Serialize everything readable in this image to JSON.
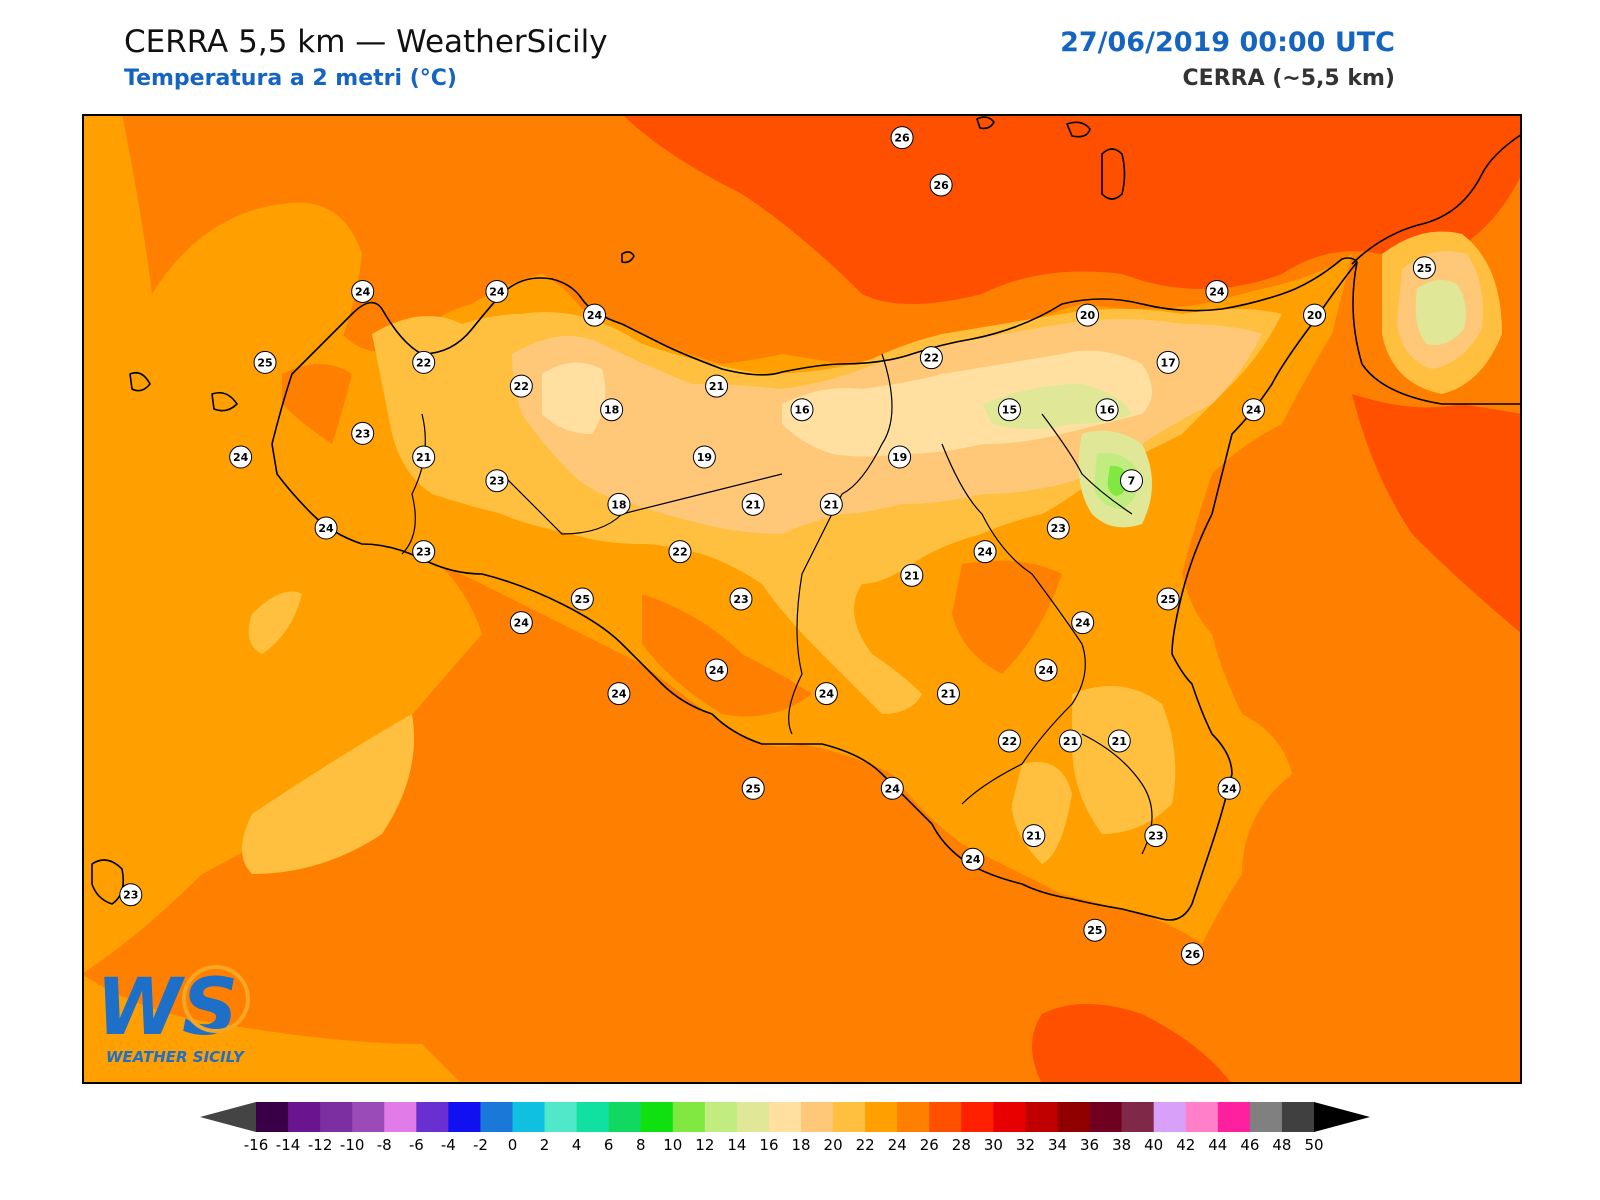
{
  "header": {
    "title": "CERRA 5,5 km — WeatherSicily",
    "subtitle": "Temperatura a 2 metri (°C)",
    "datetime": "27/06/2019 00:00 UTC",
    "model": "CERRA (~5,5 km)"
  },
  "logo": {
    "text": "WEATHER SICILY",
    "letters": "WS"
  },
  "colorbar": {
    "ticks": [
      -16,
      -14,
      -12,
      -10,
      -8,
      -6,
      -4,
      -2,
      0,
      2,
      4,
      6,
      8,
      10,
      12,
      14,
      16,
      18,
      20,
      22,
      24,
      26,
      28,
      30,
      32,
      34,
      36,
      38,
      40,
      42,
      44,
      46,
      48,
      50
    ],
    "colors": [
      "#3a0047",
      "#6a1490",
      "#7b2fa0",
      "#9b4bb8",
      "#e07be8",
      "#6a2fd0",
      "#1010f0",
      "#1a78d8",
      "#10c0e0",
      "#50e8c8",
      "#10e0a0",
      "#10d860",
      "#10e010",
      "#80e840",
      "#c0ec80",
      "#e0e898",
      "#ffe0a0",
      "#ffc878",
      "#ffc040",
      "#ffa000",
      "#ff8000",
      "#ff5000",
      "#ff2000",
      "#e80000",
      "#c00000",
      "#900000",
      "#700020",
      "#802848",
      "#d8a0f8",
      "#ff80c8",
      "#ff20a0",
      "#808080",
      "#404040"
    ],
    "low_color": "#444444",
    "high_color": "#000000"
  },
  "map_labels": [
    {
      "lon": 15.06,
      "lat": 38.8,
      "value": "26"
    },
    {
      "lon": 15.22,
      "lat": 38.6,
      "value": "26"
    },
    {
      "lon": 12.85,
      "lat": 38.15,
      "value": "24"
    },
    {
      "lon": 13.4,
      "lat": 38.15,
      "value": "24"
    },
    {
      "lon": 13.8,
      "lat": 38.05,
      "value": "24"
    },
    {
      "lon": 12.45,
      "lat": 37.85,
      "value": "25"
    },
    {
      "lon": 13.1,
      "lat": 37.85,
      "value": "22"
    },
    {
      "lon": 13.5,
      "lat": 37.75,
      "value": "22"
    },
    {
      "lon": 14.3,
      "lat": 37.75,
      "value": "21"
    },
    {
      "lon": 13.87,
      "lat": 37.65,
      "value": "18"
    },
    {
      "lon": 14.65,
      "lat": 37.65,
      "value": "16"
    },
    {
      "lon": 15.18,
      "lat": 37.87,
      "value": "22"
    },
    {
      "lon": 15.82,
      "lat": 38.05,
      "value": "20"
    },
    {
      "lon": 16.35,
      "lat": 38.15,
      "value": "24"
    },
    {
      "lon": 16.75,
      "lat": 38.05,
      "value": "20"
    },
    {
      "lon": 17.2,
      "lat": 38.25,
      "value": "25"
    },
    {
      "lon": 16.15,
      "lat": 37.85,
      "value": "17"
    },
    {
      "lon": 15.5,
      "lat": 37.65,
      "value": "15"
    },
    {
      "lon": 15.9,
      "lat": 37.65,
      "value": "16"
    },
    {
      "lon": 16.5,
      "lat": 37.65,
      "value": "24"
    },
    {
      "lon": 12.85,
      "lat": 37.55,
      "value": "23"
    },
    {
      "lon": 12.35,
      "lat": 37.45,
      "value": "24"
    },
    {
      "lon": 13.1,
      "lat": 37.45,
      "value": "21"
    },
    {
      "lon": 13.4,
      "lat": 37.35,
      "value": "23"
    },
    {
      "lon": 14.25,
      "lat": 37.45,
      "value": "19"
    },
    {
      "lon": 15.05,
      "lat": 37.45,
      "value": "19"
    },
    {
      "lon": 16.0,
      "lat": 37.35,
      "value": "7"
    },
    {
      "lon": 13.9,
      "lat": 37.25,
      "value": "18"
    },
    {
      "lon": 14.45,
      "lat": 37.25,
      "value": "21"
    },
    {
      "lon": 14.77,
      "lat": 37.25,
      "value": "21"
    },
    {
      "lon": 12.7,
      "lat": 37.15,
      "value": "24"
    },
    {
      "lon": 13.1,
      "lat": 37.05,
      "value": "23"
    },
    {
      "lon": 14.15,
      "lat": 37.05,
      "value": "22"
    },
    {
      "lon": 15.4,
      "lat": 37.05,
      "value": "24"
    },
    {
      "lon": 15.7,
      "lat": 37.15,
      "value": "23"
    },
    {
      "lon": 15.1,
      "lat": 36.95,
      "value": "21"
    },
    {
      "lon": 13.75,
      "lat": 36.85,
      "value": "25"
    },
    {
      "lon": 14.4,
      "lat": 36.85,
      "value": "23"
    },
    {
      "lon": 16.15,
      "lat": 36.85,
      "value": "25"
    },
    {
      "lon": 13.5,
      "lat": 36.75,
      "value": "24"
    },
    {
      "lon": 15.8,
      "lat": 36.75,
      "value": "24"
    },
    {
      "lon": 14.3,
      "lat": 36.55,
      "value": "24"
    },
    {
      "lon": 15.65,
      "lat": 36.55,
      "value": "24"
    },
    {
      "lon": 13.9,
      "lat": 36.45,
      "value": "24"
    },
    {
      "lon": 14.75,
      "lat": 36.45,
      "value": "24"
    },
    {
      "lon": 15.25,
      "lat": 36.45,
      "value": "21"
    },
    {
      "lon": 15.95,
      "lat": 36.25,
      "value": "21"
    },
    {
      "lon": 15.5,
      "lat": 36.25,
      "value": "22"
    },
    {
      "lon": 15.75,
      "lat": 36.25,
      "value": "21"
    },
    {
      "lon": 14.45,
      "lat": 36.05,
      "value": "25"
    },
    {
      "lon": 15.02,
      "lat": 36.05,
      "value": "24"
    },
    {
      "lon": 16.4,
      "lat": 36.05,
      "value": "24"
    },
    {
      "lon": 15.6,
      "lat": 35.85,
      "value": "21"
    },
    {
      "lon": 16.1,
      "lat": 35.85,
      "value": "23"
    },
    {
      "lon": 15.35,
      "lat": 35.75,
      "value": "24"
    },
    {
      "lon": 15.85,
      "lat": 35.45,
      "value": "25"
    },
    {
      "lon": 16.25,
      "lat": 35.35,
      "value": "26"
    },
    {
      "lon": 11.9,
      "lat": 35.6,
      "value": "23"
    }
  ]
}
